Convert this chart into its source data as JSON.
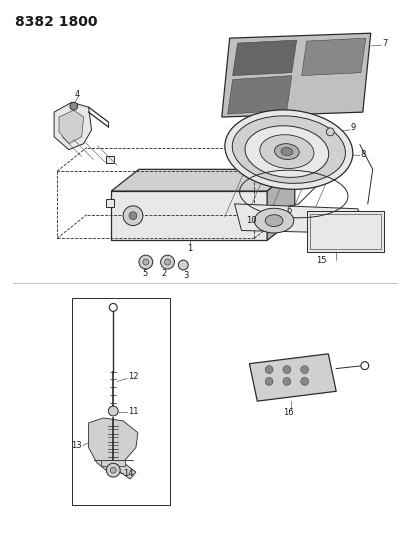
{
  "title": "8382 1800",
  "bg_color": "#ffffff",
  "title_fontsize": 10,
  "title_fontweight": "bold",
  "fig_width": 4.1,
  "fig_height": 5.33,
  "dpi": 100,
  "line_color": "#2a2a2a",
  "label_color": "#1a1a1a",
  "label_fontsize": 6.5,
  "fill_light": "#e8e8e8",
  "fill_mid": "#d0d0d0",
  "fill_dark": "#b0b0b0",
  "fill_vdark": "#888888"
}
